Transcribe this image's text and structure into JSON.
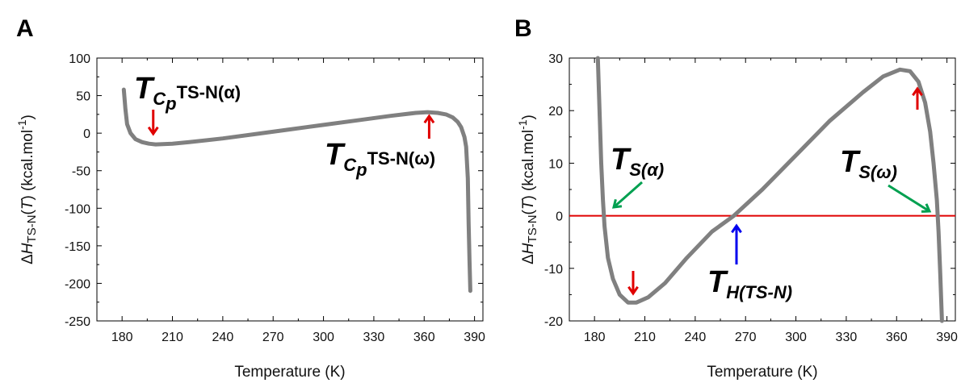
{
  "chart_data": [
    {
      "type": "line",
      "panel_label": "A",
      "xlabel": "Temperature (K)",
      "ylabel_parts": {
        "delta": "Δ",
        "H": "H",
        "sub": "TS-N",
        "paren_open": "(",
        "T": "T",
        "paren_close": ")",
        "units_pre": " (kcal.mol",
        "exp": "-1",
        "units_post": ")"
      },
      "xlim": [
        165,
        395
      ],
      "ylim": [
        -250,
        100
      ],
      "xticks": [
        180,
        210,
        240,
        270,
        300,
        330,
        360,
        390
      ],
      "yticks": [
        -250,
        -200,
        -150,
        -100,
        -50,
        0,
        50,
        100
      ],
      "grid": false,
      "series_color": "#808080",
      "arrow_color_red": "#e00000",
      "series": [
        {
          "x": [
            181,
            182,
            183,
            185,
            188,
            192,
            196,
            200,
            210,
            220,
            240,
            260,
            280,
            300,
            320,
            340,
            355,
            362,
            368,
            373,
            377,
            380,
            382,
            384,
            385,
            386,
            386.5,
            387,
            387.5
          ],
          "y": [
            58,
            32,
            12,
            0,
            -8,
            -12,
            -14,
            -15,
            -14,
            -12,
            -7,
            -1,
            5,
            11,
            17,
            23,
            27,
            28,
            27,
            25,
            21,
            15,
            8,
            -5,
            -18,
            -60,
            -120,
            -170,
            -210
          ]
        }
      ],
      "annotations": [
        {
          "main": "T",
          "sub": "C",
          "subsub": "p",
          "tail": "TS-N(α)",
          "at_x": 200,
          "arrow_dir": "down"
        },
        {
          "main": "T",
          "sub": "C",
          "subsub": "p",
          "tail": "TS-N(ω)",
          "at_x": 362,
          "arrow_dir": "up"
        }
      ]
    },
    {
      "type": "line",
      "panel_label": "B",
      "xlabel": "Temperature (K)",
      "ylabel_parts": {
        "delta": "Δ",
        "H": "H",
        "sub": "TS-N",
        "paren_open": "(",
        "T": "T",
        "paren_close": ")",
        "units_pre": " (kcal.mol",
        "exp": "-1",
        "units_post": ")"
      },
      "xlim": [
        165,
        395
      ],
      "ylim": [
        -20,
        30
      ],
      "xticks": [
        180,
        210,
        240,
        270,
        300,
        330,
        360,
        390
      ],
      "yticks": [
        -20,
        -10,
        0,
        10,
        20,
        30
      ],
      "grid": false,
      "series_color": "#808080",
      "zero_line_color": "#e00000",
      "arrow_color_red": "#e00000",
      "arrow_color_green": "#00a050",
      "arrow_color_blue": "#0000ee",
      "series": [
        {
          "x": [
            182,
            183,
            184,
            185,
            186,
            188,
            191,
            195,
            200,
            205,
            212,
            222,
            235,
            250,
            263,
            280,
            300,
            320,
            340,
            352,
            362,
            368,
            373,
            377,
            380,
            382,
            384,
            385,
            386,
            387
          ],
          "y": [
            30,
            20,
            10,
            3,
            -2,
            -8,
            -12,
            -15,
            -16.5,
            -16.5,
            -15.5,
            -12.8,
            -8,
            -3,
            0,
            5,
            11.5,
            18,
            23.5,
            26.5,
            27.8,
            27.5,
            25.5,
            21.5,
            16,
            10,
            3,
            -3,
            -11,
            -20
          ]
        }
      ],
      "annotations": [
        {
          "main": "T",
          "sub": "S(α)",
          "target_x": 185,
          "target_y": 0
        },
        {
          "main": "T",
          "sub": "S(ω)",
          "target_x": 385,
          "target_y": 0
        },
        {
          "main": "T",
          "sub": "H(TS-N)",
          "target_x": 263,
          "target_y": 0
        }
      ]
    }
  ]
}
